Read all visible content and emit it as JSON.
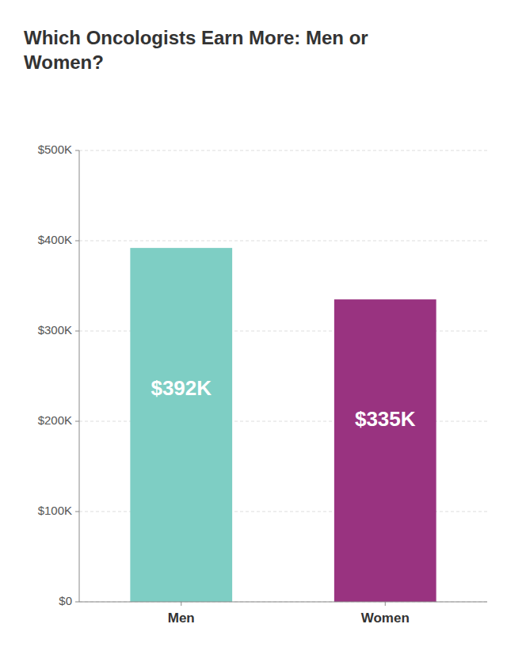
{
  "chart_data": {
    "type": "bar",
    "title": "Which Oncologists Earn More: Men or\nWomen?",
    "categories": [
      "Men",
      "Women"
    ],
    "values": [
      392000,
      335000
    ],
    "value_labels": [
      "$392K",
      "$335K"
    ],
    "data_labels": true,
    "colors": [
      "#7ECEC4",
      "#993380"
    ],
    "ylim": [
      0,
      500000
    ],
    "yticks": [
      {
        "value": 0,
        "label": "$0"
      },
      {
        "value": 100000,
        "label": "$100K"
      },
      {
        "value": 200000,
        "label": "$200K"
      },
      {
        "value": 300000,
        "label": "$300K"
      },
      {
        "value": 400000,
        "label": "$400K"
      },
      {
        "value": 500000,
        "label": "$500K"
      }
    ],
    "grid": true
  }
}
